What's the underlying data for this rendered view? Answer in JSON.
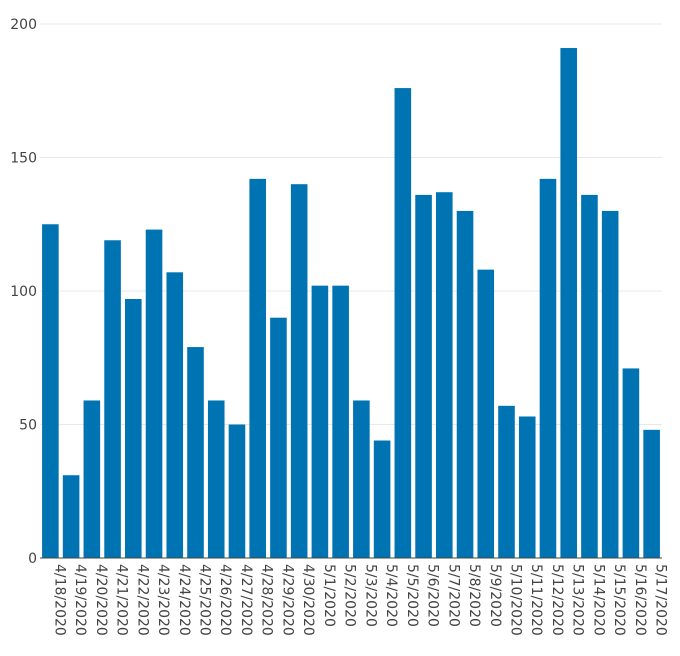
{
  "chart_data": {
    "type": "bar",
    "title": "",
    "xlabel": "",
    "ylabel": "",
    "ylim": [
      0,
      200
    ],
    "yticks": [
      0,
      50,
      100,
      150,
      200
    ],
    "grid": true,
    "bar_color": "#0073b2",
    "categories": [
      "4/18/2020",
      "4/19/2020",
      "4/20/2020",
      "4/21/2020",
      "4/22/2020",
      "4/23/2020",
      "4/24/2020",
      "4/25/2020",
      "4/26/2020",
      "4/27/2020",
      "4/28/2020",
      "4/29/2020",
      "4/30/2020",
      "5/1/2020",
      "5/2/2020",
      "5/3/2020",
      "5/4/2020",
      "5/5/2020",
      "5/6/2020",
      "5/7/2020",
      "5/8/2020",
      "5/9/2020",
      "5/10/2020",
      "5/11/2020",
      "5/12/2020",
      "5/13/2020",
      "5/14/2020",
      "5/15/2020",
      "5/16/2020",
      "5/17/2020"
    ],
    "values": [
      125,
      31,
      59,
      119,
      97,
      123,
      107,
      79,
      59,
      50,
      142,
      90,
      140,
      102,
      102,
      59,
      44,
      176,
      136,
      137,
      130,
      108,
      57,
      53,
      142,
      191,
      136,
      130,
      71,
      48
    ]
  }
}
